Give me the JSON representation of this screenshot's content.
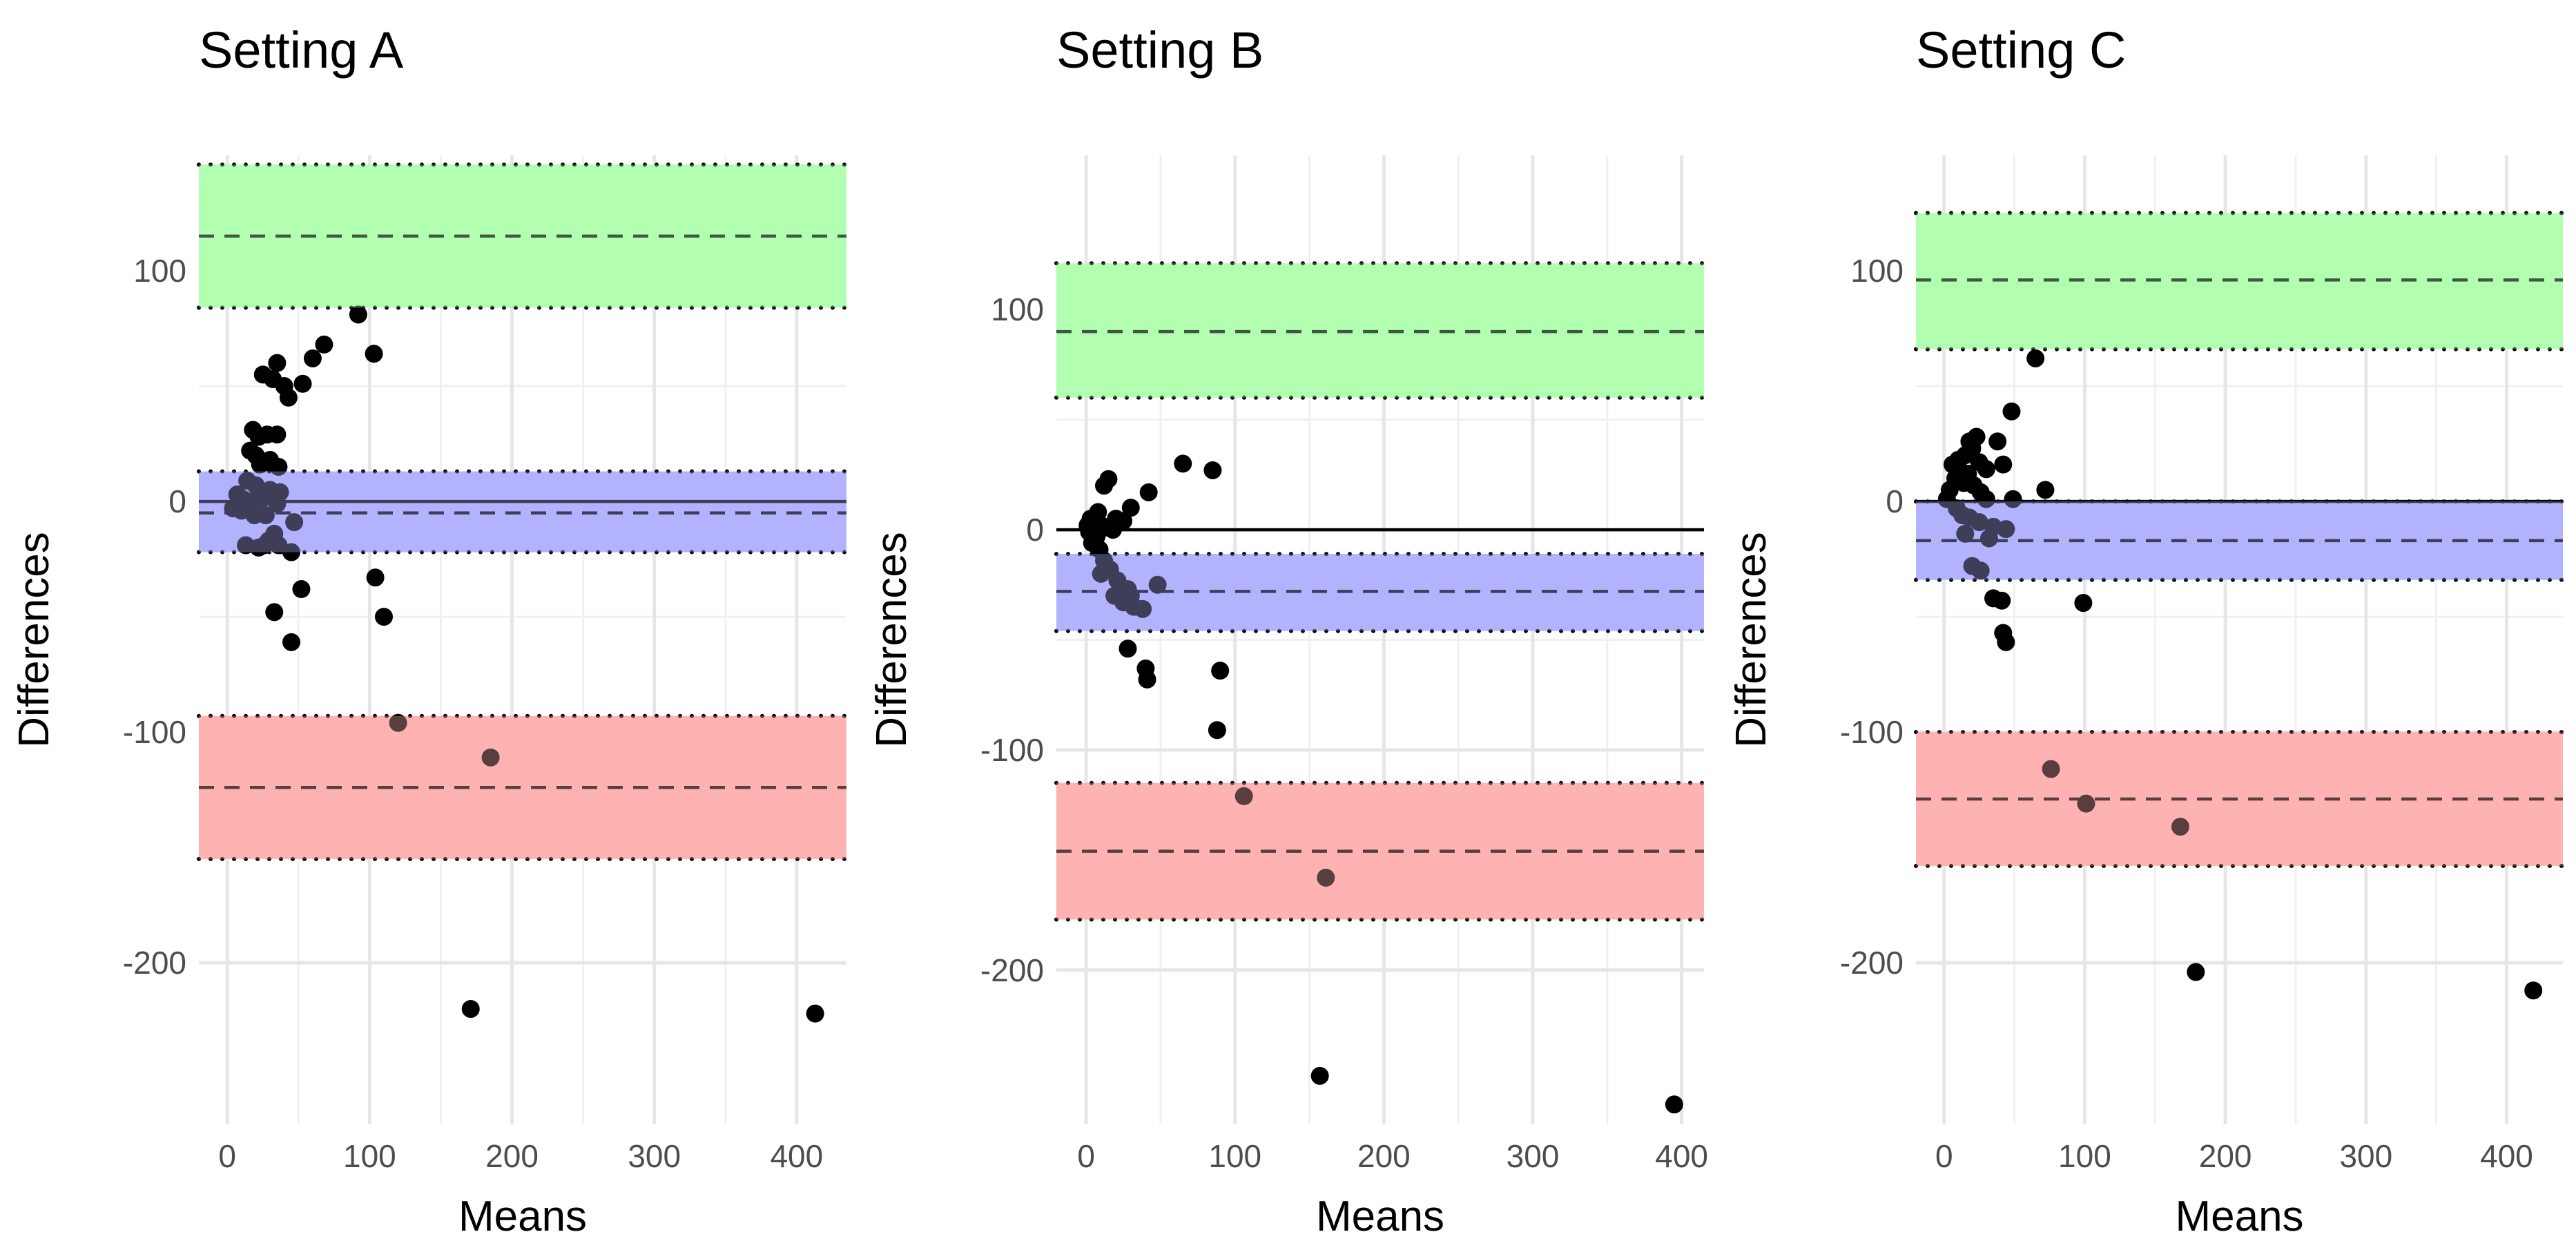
{
  "chart_data": [
    {
      "type": "scatter",
      "title": "Setting A",
      "xlabel": "Means",
      "ylabel": "Differences",
      "xlim": [
        -20,
        435
      ],
      "ylim": [
        -270,
        150
      ],
      "x_ticks": [
        0,
        100,
        200,
        300,
        400
      ],
      "y_ticks": [
        -200,
        -100,
        0,
        100
      ],
      "grid": true,
      "reference_line": 0,
      "bands": [
        {
          "name": "upper",
          "color": "#b3ffb3",
          "line": "#000000",
          "lower": 84,
          "mean": 115,
          "upper": 146
        },
        {
          "name": "bias",
          "color": "#b3b3ff",
          "line": "#000000",
          "lower": -22,
          "mean": -5,
          "upper": 13
        },
        {
          "name": "lower",
          "color": "#ffb3b3",
          "line": "#000000",
          "lower": -155,
          "mean": -124,
          "upper": -93
        }
      ],
      "points": [
        [
          92,
          81
        ],
        [
          103,
          64
        ],
        [
          68,
          68
        ],
        [
          60,
          62
        ],
        [
          53,
          51
        ],
        [
          35,
          60
        ],
        [
          40,
          50
        ],
        [
          43,
          45
        ],
        [
          25,
          55
        ],
        [
          32,
          53
        ],
        [
          18,
          31
        ],
        [
          22,
          28
        ],
        [
          28,
          29
        ],
        [
          35,
          29
        ],
        [
          16,
          22
        ],
        [
          20,
          20
        ],
        [
          30,
          18
        ],
        [
          23,
          16
        ],
        [
          36,
          15
        ],
        [
          27,
          17
        ],
        [
          14,
          9
        ],
        [
          20,
          7
        ],
        [
          30,
          5
        ],
        [
          37,
          4
        ],
        [
          7,
          3
        ],
        [
          11,
          1
        ],
        [
          17,
          0
        ],
        [
          24,
          1
        ],
        [
          35,
          -1
        ],
        [
          4,
          -3
        ],
        [
          10,
          -4
        ],
        [
          19,
          -6
        ],
        [
          27,
          -6
        ],
        [
          47,
          -9
        ],
        [
          33,
          -14
        ],
        [
          29,
          -17
        ],
        [
          26,
          -19
        ],
        [
          22,
          -20
        ],
        [
          13,
          -19
        ],
        [
          36,
          -19
        ],
        [
          45,
          -22
        ],
        [
          52,
          -38
        ],
        [
          104,
          -33
        ],
        [
          110,
          -50
        ],
        [
          33,
          -48
        ],
        [
          45,
          -61
        ],
        [
          120,
          -96
        ],
        [
          185,
          -111
        ],
        [
          171,
          -220
        ],
        [
          413,
          -222
        ]
      ]
    },
    {
      "type": "scatter",
      "title": "Setting B",
      "xlabel": "Means",
      "ylabel": "Differences",
      "xlim": [
        -20,
        415
      ],
      "ylim": [
        -270,
        170
      ],
      "x_ticks": [
        0,
        100,
        200,
        300,
        400
      ],
      "y_ticks": [
        -200,
        -100,
        0,
        100
      ],
      "grid": true,
      "reference_line": 0,
      "bands": [
        {
          "name": "upper",
          "color": "#b3ffb3",
          "line": "#000000",
          "lower": 60,
          "mean": 90,
          "upper": 121
        },
        {
          "name": "bias",
          "color": "#b3b3ff",
          "line": "#000000",
          "lower": -46,
          "mean": -28,
          "upper": -11
        },
        {
          "name": "lower",
          "color": "#ffb3b3",
          "line": "#000000",
          "lower": -177,
          "mean": -146,
          "upper": -115
        }
      ],
      "points": [
        [
          65,
          30
        ],
        [
          85,
          27
        ],
        [
          42,
          17
        ],
        [
          30,
          10
        ],
        [
          15,
          23
        ],
        [
          12,
          20
        ],
        [
          20,
          5
        ],
        [
          8,
          8
        ],
        [
          3,
          5
        ],
        [
          10,
          2
        ],
        [
          5,
          0
        ],
        [
          2,
          -1
        ],
        [
          1,
          2
        ],
        [
          14,
          1
        ],
        [
          25,
          4
        ],
        [
          18,
          0
        ],
        [
          7,
          -3
        ],
        [
          4,
          -6
        ],
        [
          9,
          -9
        ],
        [
          12,
          -14
        ],
        [
          16,
          -18
        ],
        [
          10,
          -20
        ],
        [
          21,
          -23
        ],
        [
          28,
          -27
        ],
        [
          48,
          -25
        ],
        [
          19,
          -30
        ],
        [
          25,
          -33
        ],
        [
          32,
          -35
        ],
        [
          38,
          -36
        ],
        [
          30,
          -30
        ],
        [
          40,
          -63
        ],
        [
          41,
          -68
        ],
        [
          28,
          -54
        ],
        [
          90,
          -64
        ],
        [
          88,
          -91
        ],
        [
          106,
          -121
        ],
        [
          161,
          -158
        ],
        [
          157,
          -248
        ],
        [
          395,
          -261
        ]
      ]
    },
    {
      "type": "scatter",
      "title": "Setting C",
      "xlabel": "Means",
      "ylabel": "Differences",
      "xlim": [
        -20,
        440
      ],
      "ylim": [
        -270,
        150
      ],
      "x_ticks": [
        0,
        100,
        200,
        300,
        400
      ],
      "y_ticks": [
        -200,
        -100,
        0,
        100
      ],
      "grid": true,
      "reference_line": 0,
      "bands": [
        {
          "name": "upper",
          "color": "#b3ffb3",
          "line": "#000000",
          "lower": 66,
          "mean": 96,
          "upper": 125
        },
        {
          "name": "bias",
          "color": "#b3b3ff",
          "line": "#000000",
          "lower": -34,
          "mean": -17,
          "upper": 0
        },
        {
          "name": "lower",
          "color": "#ffb3b3",
          "line": "#000000",
          "lower": -158,
          "mean": -129,
          "upper": -100
        }
      ],
      "points": [
        [
          65,
          62
        ],
        [
          48,
          39
        ],
        [
          38,
          26
        ],
        [
          23,
          28
        ],
        [
          18,
          26
        ],
        [
          20,
          23
        ],
        [
          15,
          20
        ],
        [
          10,
          18
        ],
        [
          6,
          16
        ],
        [
          25,
          17
        ],
        [
          30,
          14
        ],
        [
          42,
          16
        ],
        [
          12,
          13
        ],
        [
          17,
          12
        ],
        [
          8,
          10
        ],
        [
          14,
          8
        ],
        [
          21,
          7
        ],
        [
          4,
          5
        ],
        [
          26,
          4
        ],
        [
          2,
          1
        ],
        [
          30,
          1
        ],
        [
          49,
          1
        ],
        [
          72,
          5
        ],
        [
          9,
          -3
        ],
        [
          13,
          -6
        ],
        [
          18,
          -7
        ],
        [
          25,
          -9
        ],
        [
          35,
          -11
        ],
        [
          44,
          -12
        ],
        [
          15,
          -14
        ],
        [
          32,
          -16
        ],
        [
          20,
          -28
        ],
        [
          26,
          -30
        ],
        [
          35,
          -42
        ],
        [
          41,
          -43
        ],
        [
          42,
          -57
        ],
        [
          44,
          -61
        ],
        [
          99,
          -44
        ],
        [
          76,
          -116
        ],
        [
          101,
          -131
        ],
        [
          168,
          -141
        ],
        [
          179,
          -204
        ],
        [
          419,
          -212
        ]
      ]
    }
  ]
}
